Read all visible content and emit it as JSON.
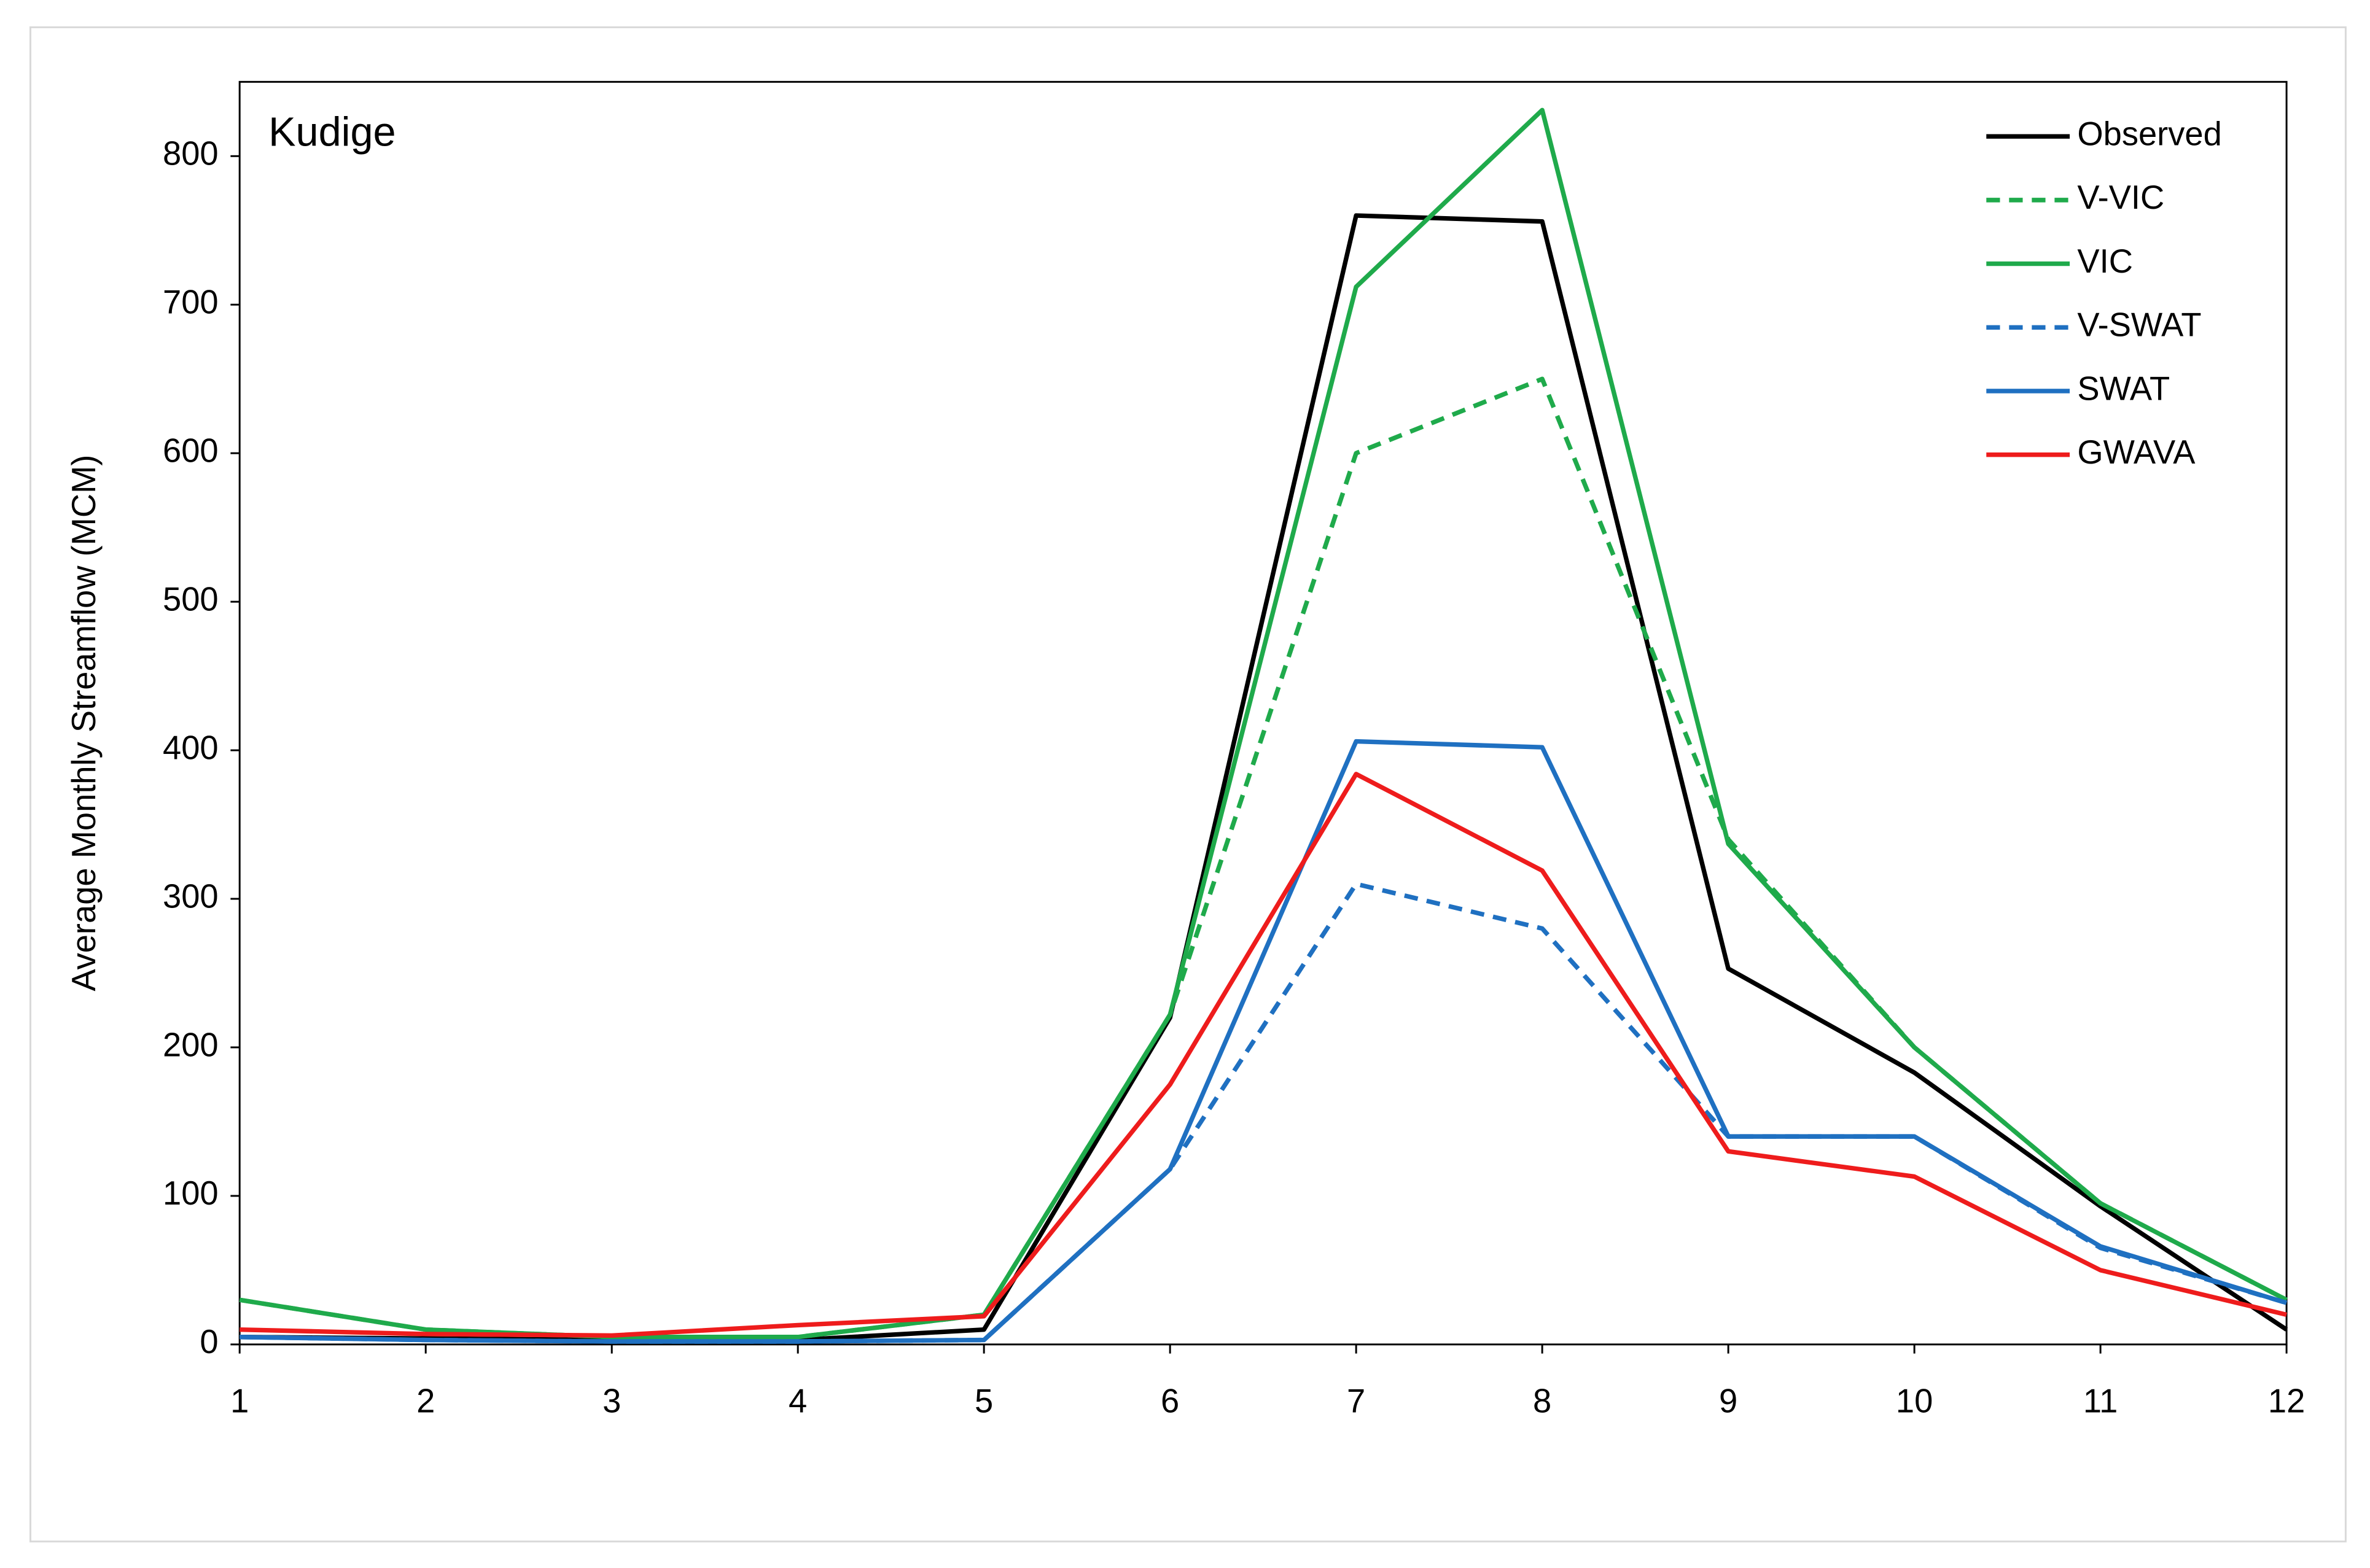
{
  "chart_data": {
    "type": "line",
    "annotation": "Kudige",
    "y_label": "Average Monthly Streamflow (MCM)",
    "x": [
      1,
      2,
      3,
      4,
      5,
      6,
      7,
      8,
      9,
      10,
      11,
      12
    ],
    "xlim": [
      1,
      12
    ],
    "xticks": [
      1,
      2,
      3,
      4,
      5,
      6,
      7,
      8,
      9,
      10,
      11,
      12
    ],
    "ylim": [
      0,
      850
    ],
    "yticks": [
      0,
      100,
      200,
      300,
      400,
      500,
      600,
      700,
      800
    ],
    "grid": false,
    "legend": "top-right",
    "series": [
      {
        "name": "Observed",
        "color": "#000000",
        "dashed": false,
        "values": [
          5,
          4,
          3,
          3,
          10,
          220,
          760,
          756,
          253,
          183,
          93,
          10
        ]
      },
      {
        "name": "V-VIC",
        "color": "#1faa4b",
        "dashed": true,
        "values": [
          30,
          10,
          5,
          5,
          20,
          222,
          600,
          650,
          340,
          200,
          95,
          30
        ]
      },
      {
        "name": "VIC",
        "color": "#1faa4b",
        "dashed": false,
        "values": [
          30,
          10,
          5,
          5,
          20,
          222,
          712,
          831,
          337,
          200,
          95,
          30
        ]
      },
      {
        "name": "V-SWAT",
        "color": "#1f70c1",
        "dashed": true,
        "values": [
          5,
          3,
          2,
          2,
          3,
          118,
          310,
          280,
          140,
          140,
          65,
          28
        ]
      },
      {
        "name": "SWAT",
        "color": "#1f70c1",
        "dashed": false,
        "values": [
          5,
          3,
          2,
          2,
          3,
          118,
          406,
          402,
          140,
          140,
          66,
          28
        ]
      },
      {
        "name": "GWAVA",
        "color": "#ee1c1c",
        "dashed": false,
        "values": [
          10,
          7,
          6,
          13,
          19,
          175,
          384,
          319,
          130,
          113,
          50,
          20
        ]
      }
    ]
  }
}
